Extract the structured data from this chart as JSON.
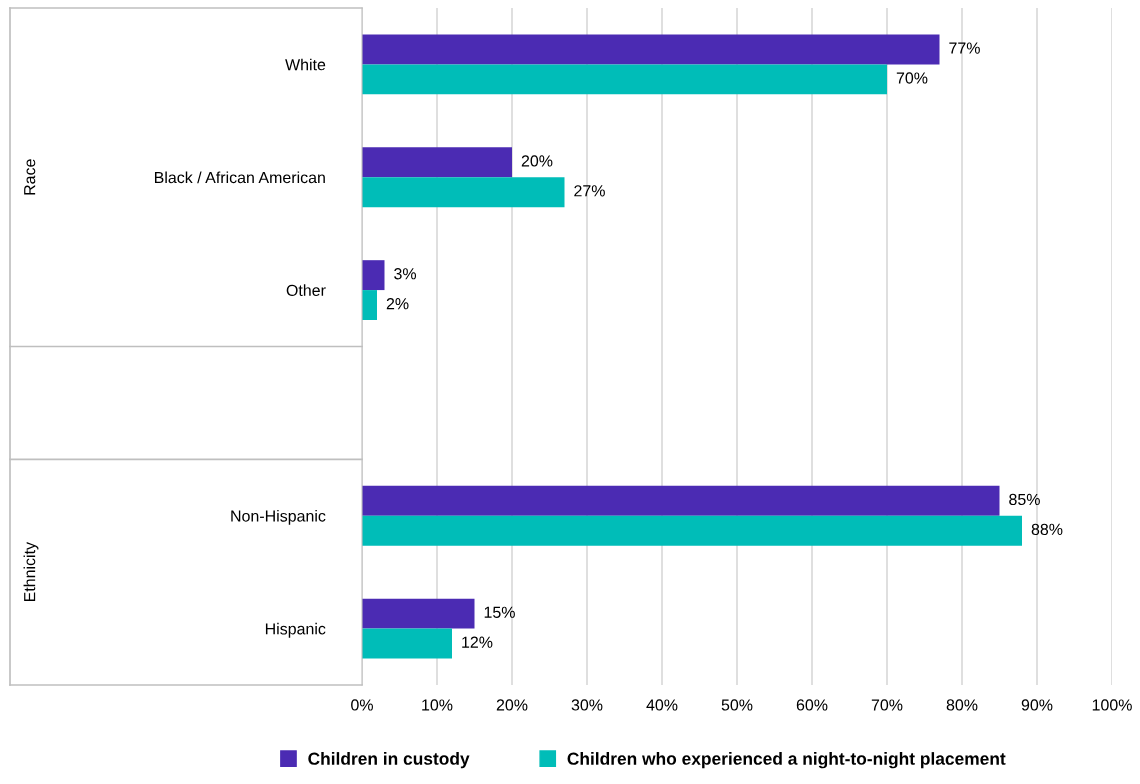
{
  "chart_data": {
    "type": "bar",
    "orientation": "horizontal",
    "categories": [
      "White",
      "Black / African American",
      "Other",
      null,
      "Non-Hispanic",
      "Hispanic"
    ],
    "series": [
      {
        "name": "Children in custody",
        "color": "#4b2bb3",
        "values": [
          77,
          20,
          3,
          null,
          85,
          15
        ],
        "value_labels": [
          "77%",
          "20%",
          "3%",
          null,
          "85%",
          "15%"
        ]
      },
      {
        "name": "Children who experienced a night-to-night placement",
        "color": "#00bdb8",
        "values": [
          70,
          27,
          2,
          null,
          88,
          12
        ],
        "value_labels": [
          "70%",
          "27%",
          "2%",
          null,
          "88%",
          "12%"
        ]
      }
    ],
    "annotations": [
      "Race",
      "Ethnicity"
    ],
    "xlim": [
      0,
      100
    ],
    "xticks": [
      {
        "value": 0,
        "label": "0%"
      },
      {
        "value": 10,
        "label": "10%"
      },
      {
        "value": 20,
        "label": "20%"
      },
      {
        "value": 30,
        "label": "30%"
      },
      {
        "value": 40,
        "label": "40%"
      },
      {
        "value": 50,
        "label": "50%"
      },
      {
        "value": 60,
        "label": "60%"
      },
      {
        "value": 70,
        "label": "70%"
      },
      {
        "value": 80,
        "label": "80%"
      },
      {
        "value": 90,
        "label": "90%"
      },
      {
        "value": 100,
        "label": "100%"
      }
    ],
    "grid": "x",
    "legend": "bottom"
  }
}
